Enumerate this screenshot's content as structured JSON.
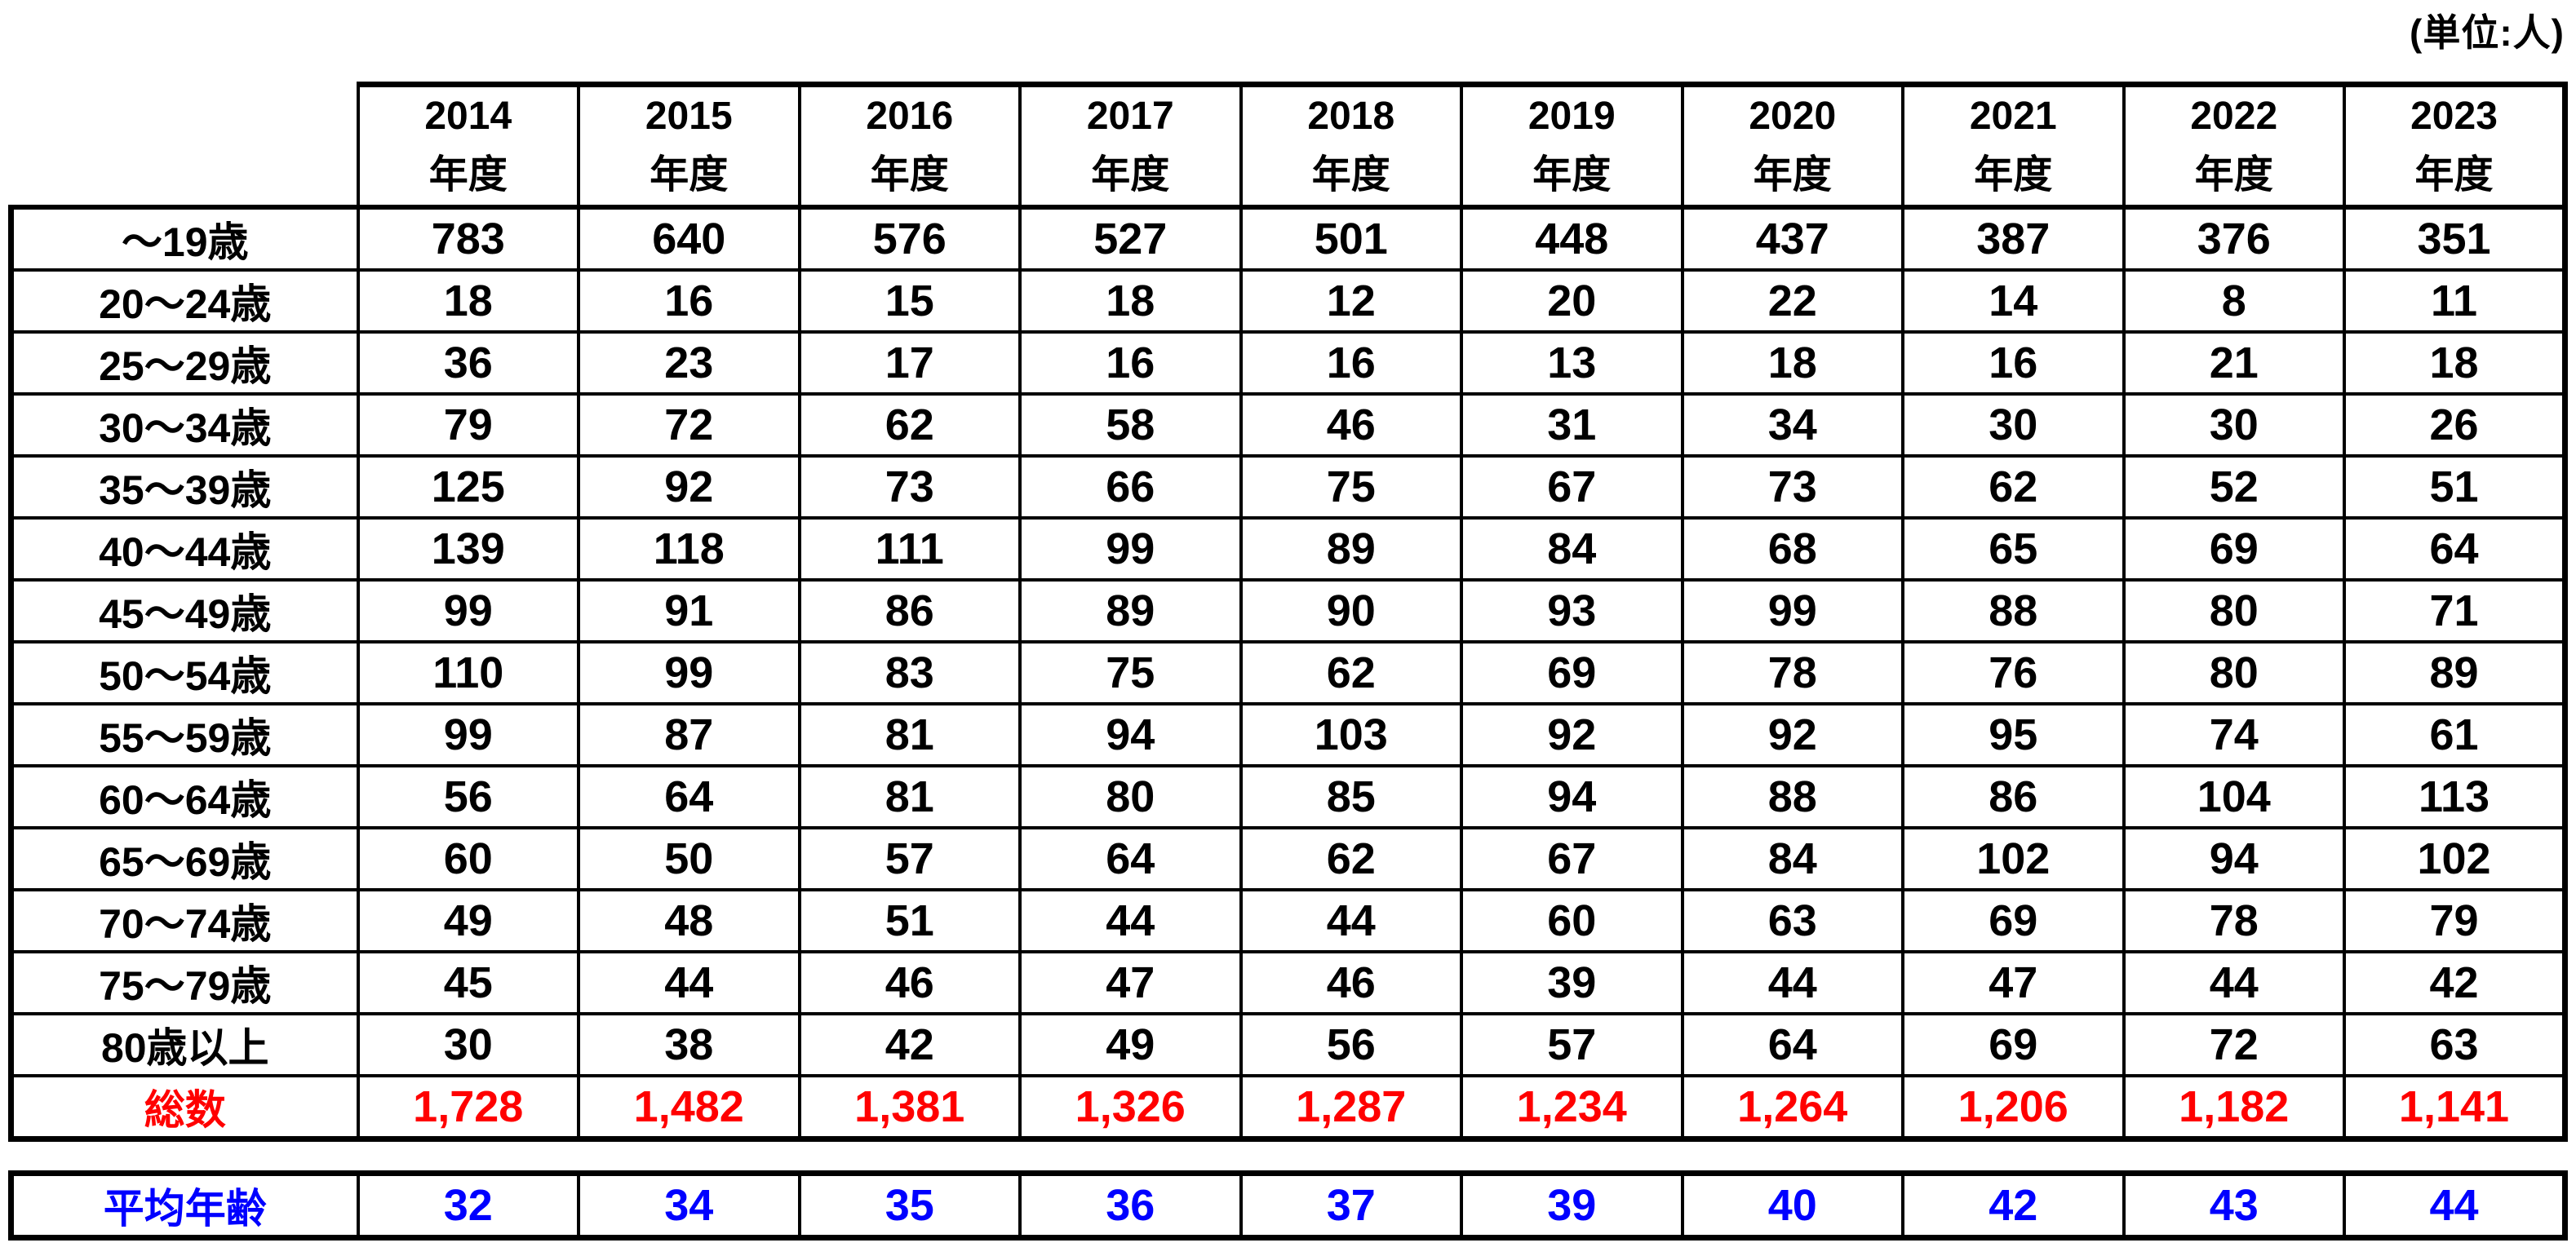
{
  "chart_data": {
    "type": "table",
    "unit_label": "(単位:人)",
    "column_header_suffix": "年度",
    "years": [
      "2014",
      "2015",
      "2016",
      "2017",
      "2018",
      "2019",
      "2020",
      "2021",
      "2022",
      "2023"
    ],
    "age_groups": [
      "～19歳",
      "20～24歳",
      "25～29歳",
      "30～34歳",
      "35～39歳",
      "40～44歳",
      "45～49歳",
      "50～54歳",
      "55～59歳",
      "60～64歳",
      "65～69歳",
      "70～74歳",
      "75～79歳",
      "80歳以上"
    ],
    "values": [
      [
        783,
        640,
        576,
        527,
        501,
        448,
        437,
        387,
        376,
        351
      ],
      [
        18,
        16,
        15,
        18,
        12,
        20,
        22,
        14,
        8,
        11
      ],
      [
        36,
        23,
        17,
        16,
        16,
        13,
        18,
        16,
        21,
        18
      ],
      [
        79,
        72,
        62,
        58,
        46,
        31,
        34,
        30,
        30,
        26
      ],
      [
        125,
        92,
        73,
        66,
        75,
        67,
        73,
        62,
        52,
        51
      ],
      [
        139,
        118,
        111,
        99,
        89,
        84,
        68,
        65,
        69,
        64
      ],
      [
        99,
        91,
        86,
        89,
        90,
        93,
        99,
        88,
        80,
        71
      ],
      [
        110,
        99,
        83,
        75,
        62,
        69,
        78,
        76,
        80,
        89
      ],
      [
        99,
        87,
        81,
        94,
        103,
        92,
        92,
        95,
        74,
        61
      ],
      [
        56,
        64,
        81,
        80,
        85,
        94,
        88,
        86,
        104,
        113
      ],
      [
        60,
        50,
        57,
        64,
        62,
        67,
        84,
        102,
        94,
        102
      ],
      [
        49,
        48,
        51,
        44,
        44,
        60,
        63,
        69,
        78,
        79
      ],
      [
        45,
        44,
        46,
        47,
        46,
        39,
        44,
        47,
        44,
        42
      ],
      [
        30,
        38,
        42,
        49,
        56,
        57,
        64,
        69,
        72,
        63
      ]
    ],
    "totals": {
      "label": "総数",
      "values": [
        "1,728",
        "1,482",
        "1,381",
        "1,326",
        "1,287",
        "1,234",
        "1,264",
        "1,206",
        "1,182",
        "1,141"
      ]
    },
    "average_age": {
      "label": "平均年齢",
      "values": [
        32,
        34,
        35,
        36,
        37,
        39,
        40,
        42,
        43,
        44
      ]
    },
    "styles": {
      "text_color": "#000000",
      "total_color": "#FF0000",
      "average_color": "#0000FF",
      "border_color": "#000000"
    },
    "layout": {
      "grid": "on",
      "legend": "none"
    }
  }
}
